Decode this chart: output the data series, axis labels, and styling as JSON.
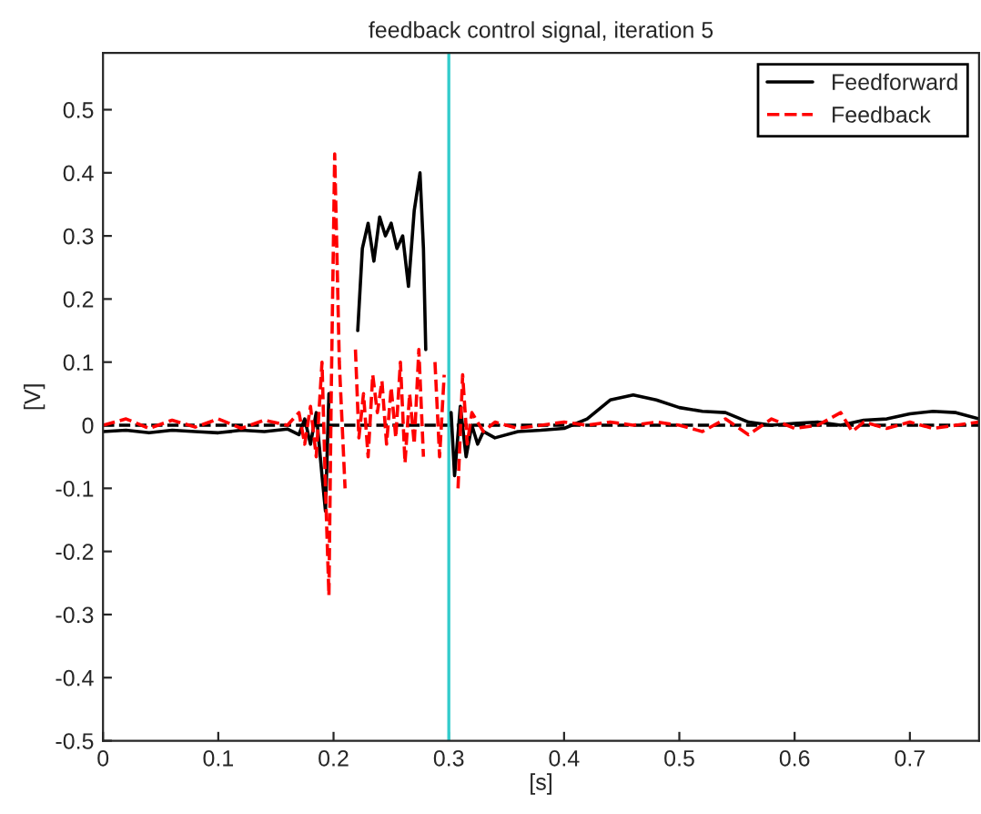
{
  "chart_data": {
    "type": "line",
    "title": "feedback control signal, iteration 5",
    "xlabel": "[s]",
    "ylabel": "[V]",
    "xlim": [
      0,
      0.76
    ],
    "ylim": [
      -0.5,
      0.59
    ],
    "xticks": [
      0,
      0.1,
      0.2,
      0.3,
      0.4,
      0.5,
      0.6,
      0.7
    ],
    "yticks": [
      -0.5,
      -0.4,
      -0.3,
      -0.2,
      -0.1,
      0,
      0.1,
      0.2,
      0.3,
      0.4,
      0.5
    ],
    "grid": false,
    "legend": "top right",
    "ref_lines": [
      {
        "axis": "y",
        "value": 0,
        "color": "#000000",
        "line_style": "dashed"
      },
      {
        "axis": "x",
        "value": 0.3,
        "color": "#33cccc",
        "line_style": "solid"
      }
    ],
    "series": [
      {
        "name": "Feedforward",
        "color": "#000000",
        "line_style": "solid",
        "x": [
          0,
          0.02,
          0.04,
          0.06,
          0.08,
          0.1,
          0.12,
          0.14,
          0.16,
          0.17,
          0.175,
          0.18,
          0.185,
          0.19,
          0.193,
          0.196,
          0.199,
          0.218,
          0.221,
          0.225,
          0.23,
          0.235,
          0.24,
          0.245,
          0.25,
          0.255,
          0.26,
          0.265,
          0.27,
          0.275,
          0.278,
          0.28,
          0.283,
          0.298,
          0.302,
          0.305,
          0.31,
          0.315,
          0.32,
          0.325,
          0.33,
          0.34,
          0.36,
          0.38,
          0.4,
          0.42,
          0.44,
          0.46,
          0.48,
          0.5,
          0.52,
          0.54,
          0.56,
          0.58,
          0.6,
          0.62,
          0.64,
          0.66,
          0.68,
          0.7,
          0.72,
          0.74,
          0.76
        ],
        "values": [
          -0.01,
          -0.008,
          -0.012,
          -0.008,
          -0.01,
          -0.012,
          -0.008,
          -0.01,
          -0.006,
          -0.015,
          0.01,
          -0.03,
          0.02,
          -0.08,
          -0.136,
          0.05,
          null,
          null,
          0.15,
          0.28,
          0.32,
          0.26,
          0.33,
          0.3,
          0.32,
          0.28,
          0.3,
          0.22,
          0.34,
          0.4,
          0.28,
          0.12,
          null,
          null,
          0.02,
          -0.08,
          0.03,
          -0.05,
          0.0,
          -0.03,
          -0.01,
          -0.02,
          -0.01,
          -0.008,
          -0.005,
          0.01,
          0.04,
          0.048,
          0.04,
          0.028,
          0.022,
          0.02,
          0.005,
          0.0,
          0.003,
          0.005,
          0.0,
          0.008,
          0.01,
          0.018,
          0.022,
          0.02,
          0.01
        ]
      },
      {
        "name": "Feedback",
        "color": "#ff0000",
        "line_style": "dashed",
        "x": [
          0,
          0.02,
          0.04,
          0.06,
          0.08,
          0.1,
          0.12,
          0.14,
          0.16,
          0.17,
          0.175,
          0.18,
          0.185,
          0.19,
          0.193,
          0.196,
          0.198,
          0.201,
          0.205,
          0.21,
          0.214,
          0.217,
          0.219,
          0.222,
          0.226,
          0.23,
          0.234,
          0.238,
          0.242,
          0.246,
          0.25,
          0.254,
          0.258,
          0.262,
          0.266,
          0.27,
          0.274,
          0.278,
          0.28,
          0.284,
          0.288,
          0.292,
          0.296,
          0.3,
          0.305,
          0.308,
          0.312,
          0.316,
          0.32,
          0.33,
          0.34,
          0.36,
          0.4,
          0.42,
          0.44,
          0.46,
          0.48,
          0.5,
          0.52,
          0.54,
          0.56,
          0.58,
          0.6,
          0.62,
          0.64,
          0.65,
          0.66,
          0.68,
          0.7,
          0.72,
          0.74,
          0.76
        ],
        "values": [
          0.0,
          0.01,
          -0.005,
          0.008,
          -0.003,
          0.01,
          -0.005,
          0.008,
          0.0,
          0.02,
          -0.03,
          0.03,
          -0.05,
          0.1,
          -0.1,
          -0.27,
          0.05,
          0.43,
          0.1,
          -0.1,
          null,
          null,
          0.12,
          -0.02,
          0.05,
          -0.05,
          0.08,
          0.02,
          0.07,
          -0.03,
          0.06,
          -0.02,
          0.1,
          -0.06,
          0.05,
          -0.03,
          0.12,
          -0.05,
          null,
          null,
          0.1,
          -0.05,
          0.08,
          null,
          null,
          -0.1,
          0.08,
          -0.03,
          0.02,
          -0.01,
          0.005,
          -0.005,
          0.005,
          0.0,
          0.005,
          0.0,
          0.005,
          0.0,
          -0.01,
          0.01,
          -0.015,
          0.01,
          -0.005,
          0.0,
          0.02,
          -0.01,
          0.005,
          -0.005,
          0.005,
          -0.005,
          0.0,
          0.005
        ]
      }
    ]
  }
}
